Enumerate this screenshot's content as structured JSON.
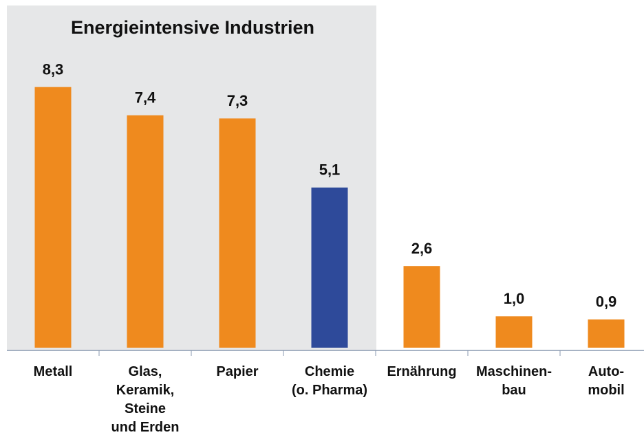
{
  "chart_data": {
    "type": "bar",
    "title": "Energieintensive Industrien",
    "categories": [
      "Metall",
      "Glas,\nKeramik,\nSteine\nund Erden",
      "Papier",
      "Chemie\n(o. Pharma)",
      "Ernährung",
      "Maschinen-\nbau",
      "Auto-\nmobil"
    ],
    "values": [
      8.3,
      7.4,
      7.3,
      5.1,
      2.6,
      1.0,
      0.9
    ],
    "value_labels": [
      "8,3",
      "7,4",
      "7,3",
      "5,1",
      "2,6",
      "1,0",
      "0,9"
    ],
    "colors": [
      "#ef8a1e",
      "#ef8a1e",
      "#ef8a1e",
      "#2e4a9a",
      "#ef8a1e",
      "#ef8a1e",
      "#ef8a1e"
    ]
  }
}
